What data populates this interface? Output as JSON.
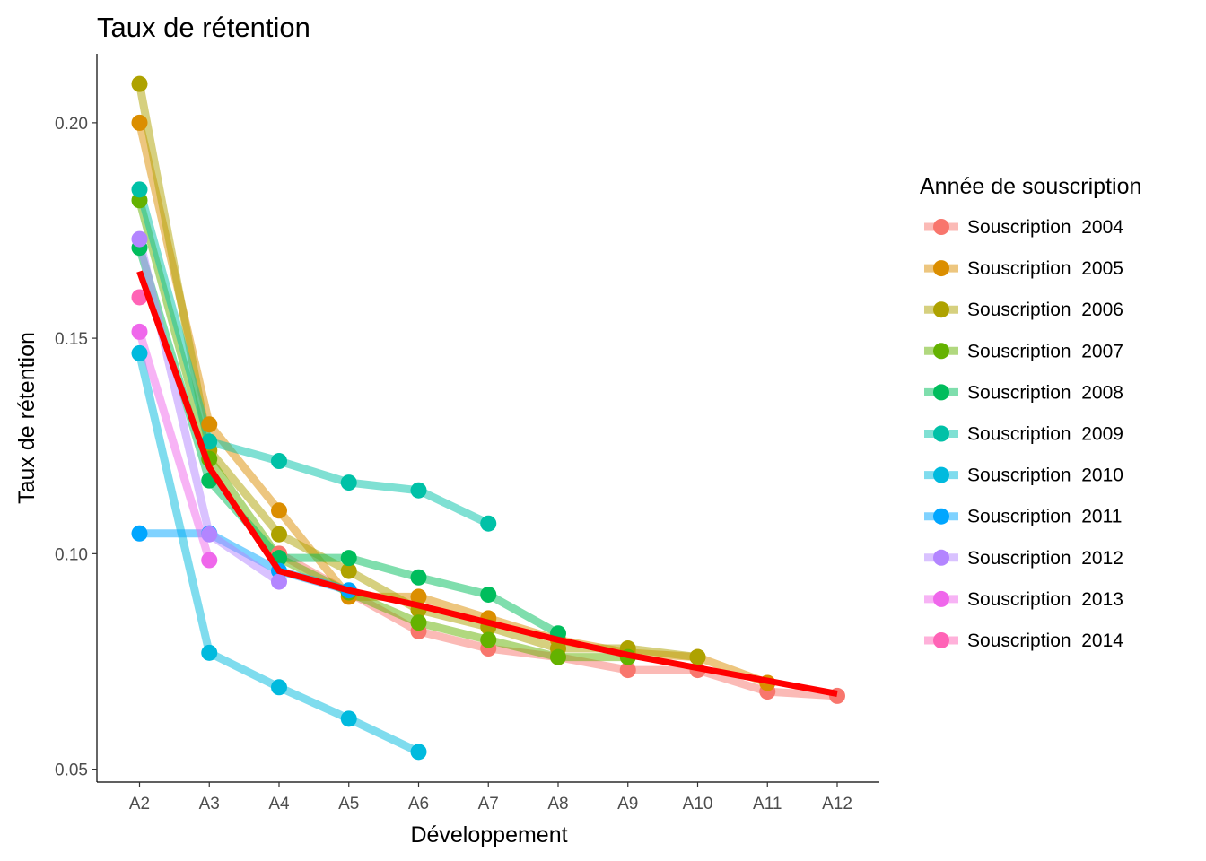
{
  "chart_data": {
    "type": "line",
    "title": "Taux de rétention",
    "xlabel": "Développement",
    "ylabel": "Taux de rétention",
    "categories": [
      "A2",
      "A3",
      "A4",
      "A5",
      "A6",
      "A7",
      "A8",
      "A9",
      "A10",
      "A11",
      "A12"
    ],
    "yticks": [
      0.05,
      0.1,
      0.15,
      0.2
    ],
    "ytick_labels": [
      "0.05",
      "0.10",
      "0.15",
      "0.20"
    ],
    "ylim": [
      0.047,
      0.216
    ],
    "grid": false,
    "legend": {
      "title": "Année de souscription",
      "position": "right"
    },
    "series": [
      {
        "name": "Souscription  2004",
        "color": "#F8766D",
        "values": [
          null,
          null,
          0.1,
          0.091,
          0.082,
          0.078,
          0.076,
          0.073,
          0.073,
          0.068,
          0.067
        ]
      },
      {
        "name": "Souscription  2005",
        "color": "#DB8E00",
        "values": [
          0.2,
          0.13,
          0.11,
          0.09,
          0.09,
          0.085,
          0.08,
          0.077,
          0.076,
          0.07,
          null
        ]
      },
      {
        "name": "Souscription  2006",
        "color": "#AEA200",
        "values": [
          0.209,
          0.124,
          0.1045,
          0.096,
          0.087,
          0.083,
          0.078,
          0.078,
          0.076,
          null,
          null
        ]
      },
      {
        "name": "Souscription  2007",
        "color": "#64B200",
        "values": [
          0.182,
          0.122,
          0.099,
          0.091,
          0.084,
          0.08,
          0.076,
          0.076,
          null,
          null,
          null
        ]
      },
      {
        "name": "Souscription  2008",
        "color": "#00BD5C",
        "values": [
          0.171,
          0.117,
          0.099,
          0.099,
          0.0945,
          0.0905,
          0.0815,
          null,
          null,
          null,
          null
        ]
      },
      {
        "name": "Souscription  2009",
        "color": "#00C1A7",
        "values": [
          0.1845,
          0.126,
          0.1215,
          0.1165,
          0.1147,
          0.107,
          null,
          null,
          null,
          null,
          null
        ]
      },
      {
        "name": "Souscription  2010",
        "color": "#00BADE",
        "values": [
          0.1465,
          0.077,
          0.069,
          0.0617,
          0.054,
          null,
          null,
          null,
          null,
          null,
          null
        ]
      },
      {
        "name": "Souscription  2011",
        "color": "#00A6FF",
        "values": [
          0.1047,
          0.1047,
          0.096,
          0.0915,
          null,
          null,
          null,
          null,
          null,
          null,
          null
        ]
      },
      {
        "name": "Souscription  2012",
        "color": "#B385FF",
        "values": [
          0.173,
          0.1045,
          0.0935,
          null,
          null,
          null,
          null,
          null,
          null,
          null,
          null
        ]
      },
      {
        "name": "Souscription  2013",
        "color": "#EF67EB",
        "values": [
          0.1515,
          0.0985,
          null,
          null,
          null,
          null,
          null,
          null,
          null,
          null,
          null
        ]
      },
      {
        "name": "Souscription  2014",
        "color": "#FF63B6",
        "values": [
          0.1595,
          null,
          null,
          null,
          null,
          null,
          null,
          null,
          null,
          null,
          null
        ]
      }
    ],
    "overlay": {
      "color": "#FF0000",
      "values": [
        0.1655,
        0.12,
        0.096,
        0.0915,
        0.088,
        0.084,
        0.08,
        0.0765,
        0.0735,
        0.0705,
        0.0675
      ]
    }
  }
}
